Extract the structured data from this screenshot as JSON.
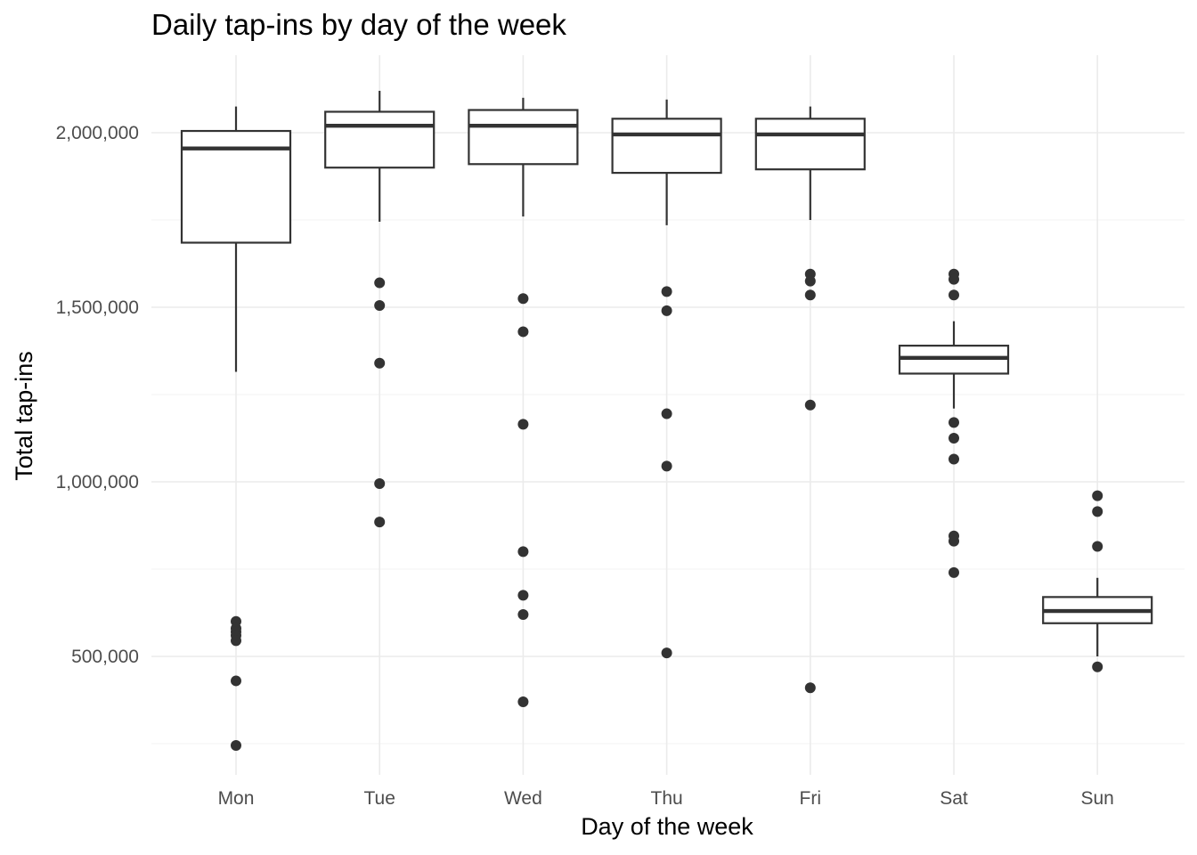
{
  "chart_data": {
    "type": "boxplot",
    "title": "Daily tap-ins by day of the week",
    "xlabel": "Day of the week",
    "ylabel": "Total tap-ins",
    "ylim": [
      175000,
      2220000
    ],
    "y_major_ticks": [
      500000,
      1000000,
      1500000,
      2000000
    ],
    "y_tick_labels": [
      "500,000",
      "1,000,000",
      "1,500,000",
      "2,000,000"
    ],
    "y_minor_ticks": [
      250000,
      750000,
      1250000,
      1750000
    ],
    "grid": true,
    "legend": "none",
    "categories": [
      "Mon",
      "Tue",
      "Wed",
      "Thu",
      "Fri",
      "Sat",
      "Sun"
    ],
    "boxes": [
      {
        "category": "Mon",
        "whisker_low": 1315000,
        "q1": 1685000,
        "median": 1955000,
        "q3": 2005000,
        "whisker_high": 2075000,
        "outliers": [
          600000,
          580000,
          570000,
          560000,
          545000,
          430000,
          245000
        ]
      },
      {
        "category": "Tue",
        "whisker_low": 1745000,
        "q1": 1900000,
        "median": 2020000,
        "q3": 2060000,
        "whisker_high": 2120000,
        "outliers": [
          1570000,
          1505000,
          1340000,
          995000,
          885000
        ]
      },
      {
        "category": "Wed",
        "whisker_low": 1760000,
        "q1": 1910000,
        "median": 2020000,
        "q3": 2065000,
        "whisker_high": 2100000,
        "outliers": [
          1525000,
          1430000,
          1165000,
          800000,
          675000,
          620000,
          370000
        ]
      },
      {
        "category": "Thu",
        "whisker_low": 1735000,
        "q1": 1885000,
        "median": 1995000,
        "q3": 2040000,
        "whisker_high": 2095000,
        "outliers": [
          1545000,
          1490000,
          1195000,
          1045000,
          510000
        ]
      },
      {
        "category": "Fri",
        "whisker_low": 1750000,
        "q1": 1895000,
        "median": 1995000,
        "q3": 2040000,
        "whisker_high": 2075000,
        "outliers": [
          1595000,
          1575000,
          1535000,
          1220000,
          410000
        ]
      },
      {
        "category": "Sat",
        "whisker_low": 1210000,
        "q1": 1310000,
        "median": 1355000,
        "q3": 1390000,
        "whisker_high": 1460000,
        "outliers": [
          1595000,
          1580000,
          1535000,
          1170000,
          1125000,
          1065000,
          845000,
          830000,
          740000
        ]
      },
      {
        "category": "Sun",
        "whisker_low": 500000,
        "q1": 595000,
        "median": 630000,
        "q3": 670000,
        "whisker_high": 725000,
        "outliers": [
          960000,
          915000,
          815000,
          470000
        ]
      }
    ]
  }
}
